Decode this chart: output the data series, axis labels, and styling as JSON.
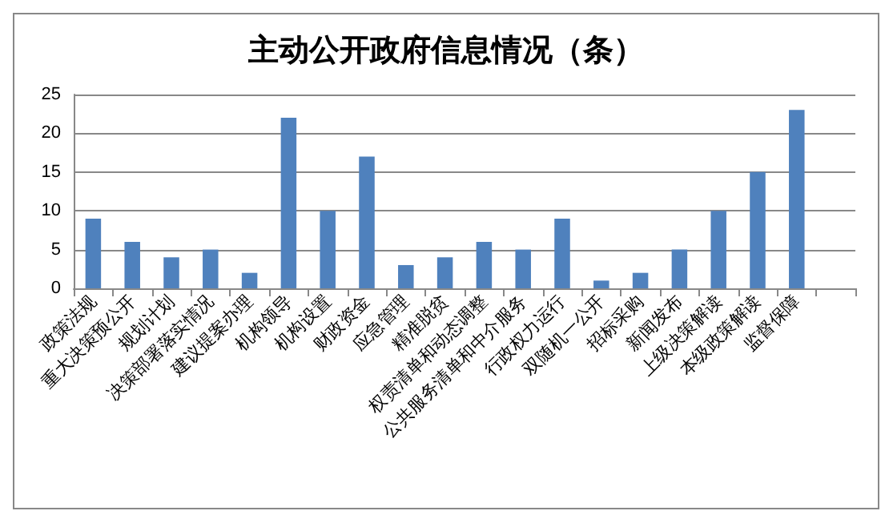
{
  "chart_data": {
    "type": "bar",
    "title": "主动公开政府信息情况（条）",
    "categories": [
      "政策法规",
      "重大决策预公开",
      "规划计划",
      "决策部署落实情况",
      "建议提案办理",
      "机构领导",
      "机构设置",
      "财政资金",
      "应急管理",
      "精准脱贫",
      "权责清单和动态调整",
      "公共服务清单和中介服务",
      "行政权力运行",
      "双随机一公开",
      "招标采购",
      "新闻发布",
      "上级决策解读",
      "本级政策解读",
      "监督保障",
      null
    ],
    "values": [
      9,
      6,
      4,
      5,
      2,
      22,
      10,
      17,
      3,
      4,
      6,
      5,
      9,
      1,
      2,
      5,
      10,
      15,
      23,
      null
    ],
    "color": "#4f81bd",
    "ylim": [
      0,
      25
    ],
    "yticks": [
      0,
      5,
      10,
      15,
      20,
      25
    ],
    "grid": "y"
  }
}
